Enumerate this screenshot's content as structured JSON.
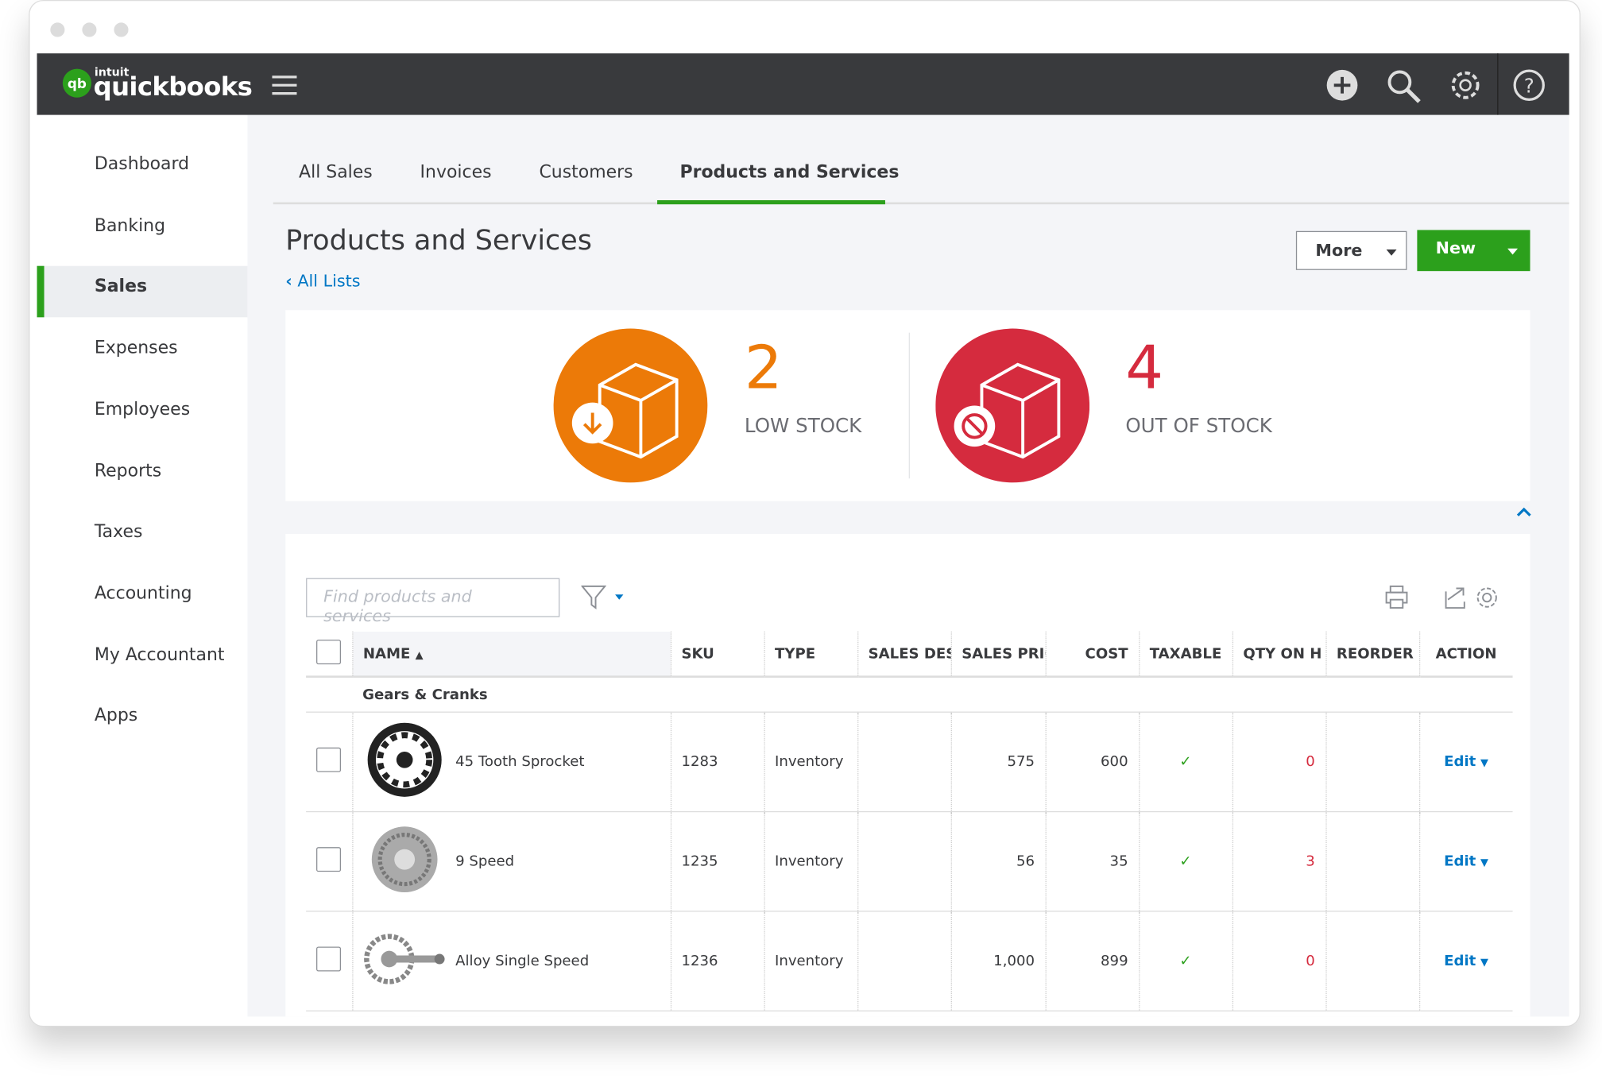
{
  "brand": {
    "vendor": "intuit",
    "product": "quickbooks"
  },
  "nav": [
    "Dashboard",
    "Banking",
    "Sales",
    "Expenses",
    "Employees",
    "Reports",
    "Taxes",
    "Accounting",
    "My Accountant",
    "Apps"
  ],
  "tabs": [
    "All Sales",
    "Invoices",
    "Customers",
    "Products and Services"
  ],
  "page": {
    "title": "Products and Services",
    "back_link": "All Lists",
    "more_button": "More",
    "new_button": "New"
  },
  "stock": {
    "low": {
      "count": "2",
      "label": "LOW STOCK"
    },
    "out": {
      "count": "4",
      "label": "OUT OF STOCK"
    }
  },
  "search": {
    "placeholder": "Find products and services"
  },
  "table": {
    "headers": [
      "NAME",
      "SKU",
      "TYPE",
      "SALES DES",
      "SALES PRIC",
      "COST",
      "TAXABLE",
      "QTY ON H",
      "REORDER",
      "ACTION"
    ],
    "group": "Gears & Cranks",
    "rows": [
      [
        "45 Tooth Sprocket",
        "1283",
        "Inventory",
        "",
        "575",
        "600",
        "✓",
        "0",
        "",
        "Edit"
      ],
      [
        "9 Speed",
        "1235",
        "Inventory",
        "",
        "56",
        "35",
        "✓",
        "3",
        "",
        "Edit"
      ],
      [
        "Alloy Single Speed",
        "1236",
        "Inventory",
        "",
        "1,000",
        "899",
        "✓",
        "0",
        "",
        "Edit"
      ]
    ]
  }
}
